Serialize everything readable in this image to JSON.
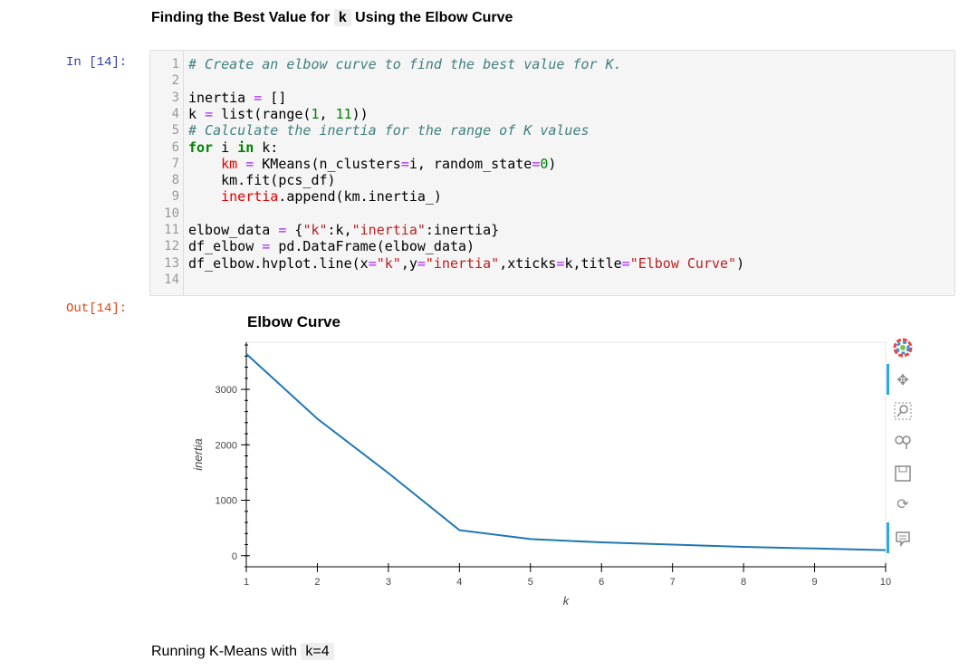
{
  "markdown": {
    "title_prefix": "Finding the Best Value for",
    "title_code": "k",
    "title_suffix": "Using the Elbow Curve",
    "running_prefix": "Running K-Means with",
    "running_code": "k=4"
  },
  "cell": {
    "in_prompt": "In [14]:",
    "out_prompt": "Out[14]:",
    "line_numbers": [
      "1",
      "2",
      "3",
      "4",
      "5",
      "6",
      "7",
      "8",
      "9",
      "10",
      "11",
      "12",
      "13",
      "14"
    ]
  },
  "code": {
    "l1": "# Create an elbow curve to find the best value for K.",
    "l3a": "inertia ",
    "l3b": "=",
    "l3c": " []",
    "l4a": "k ",
    "l4b": "=",
    "l4c": " list(range(",
    "l4d": "1",
    "l4e": ", ",
    "l4f": "11",
    "l4g": "))",
    "l5": "# Calculate the inertia for the range of K values",
    "l6a": "for",
    "l6b": " i ",
    "l6c": "in",
    "l6d": " k:",
    "l7a": "    km ",
    "l7b": "=",
    "l7c": " KMeans(n_clusters",
    "l7d": "=",
    "l7e": "i, random_state",
    "l7f": "=",
    "l7g": "0",
    "l7h": ")",
    "l8": "    km.fit(pcs_df)",
    "l9a": "    inertia",
    "l9b": ".append(km.inertia_)",
    "l11a": "elbow_data ",
    "l11b": "=",
    "l11c": " {",
    "l11d": "\"k\"",
    "l11e": ":k,",
    "l11f": "\"inertia\"",
    "l11g": ":inertia}",
    "l12a": "df_elbow ",
    "l12b": "=",
    "l12c": " pd.DataFrame(elbow_data)",
    "l13a": "df_elbow.hvplot.line(x",
    "l13b": "=",
    "l13c": "\"k\"",
    "l13d": ",y",
    "l13e": "=",
    "l13f": "\"inertia\"",
    "l13g": ",xticks",
    "l13h": "=",
    "l13i": "k,title",
    "l13j": "=",
    "l13k": "\"Elbow Curve\"",
    "l13l": ")"
  },
  "chart_data": {
    "type": "line",
    "title": "Elbow Curve",
    "xlabel": "k",
    "ylabel": "inertia",
    "x": [
      1,
      2,
      3,
      4,
      5,
      6,
      7,
      8,
      9,
      10
    ],
    "values": [
      3640,
      2470,
      1490,
      460,
      300,
      240,
      200,
      160,
      130,
      100
    ],
    "xlim": [
      1,
      10
    ],
    "ylim": [
      -200,
      3850
    ],
    "xticks": [
      1,
      2,
      3,
      4,
      5,
      6,
      7,
      8,
      9,
      10
    ],
    "yticks": [
      0,
      1000,
      2000,
      3000
    ],
    "line_color": "#1f77b4",
    "grid": false
  },
  "toolbar": {
    "icons": [
      "bokeh-logo-icon",
      "pan-icon",
      "box-zoom-icon",
      "wheel-zoom-icon",
      "save-icon",
      "reset-icon",
      "hover-icon"
    ],
    "accent_color": "#26aae1"
  }
}
